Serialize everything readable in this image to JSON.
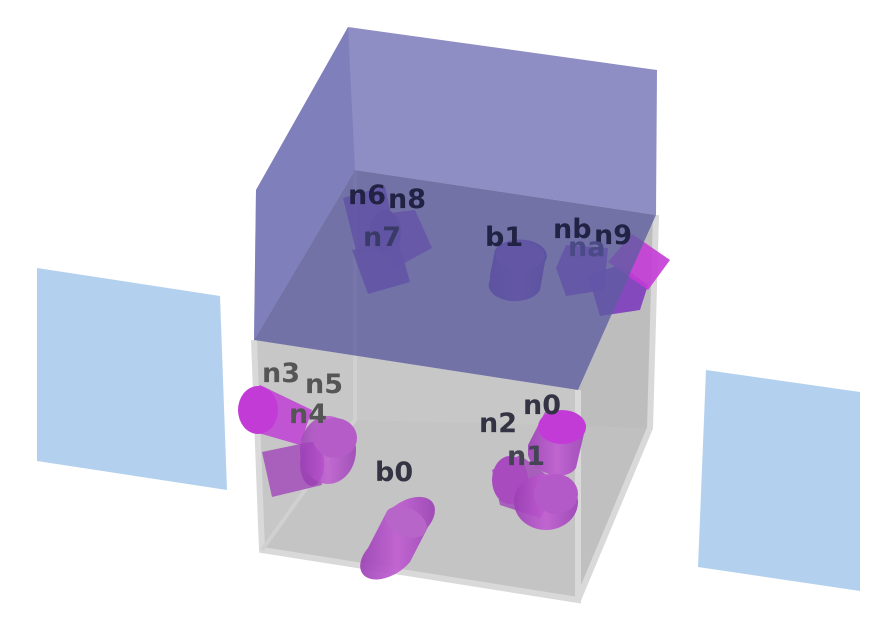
{
  "labels": {
    "b0": "b0",
    "b1": "b1",
    "n0": "n0",
    "n1": "n1",
    "n2": "n2",
    "n3": "n3",
    "n4": "n4",
    "n5": "n5",
    "n6": "n6",
    "n7": "n7",
    "n8": "n8",
    "n9": "n9",
    "na": "na",
    "nb": "nb"
  },
  "colors": {
    "background": "#ffffff",
    "side_panel": "#b3d1ee",
    "lower_box": "#c7c7c7",
    "lower_box_edge": "#d9d9d9",
    "upper_box": "#7a7aba",
    "upper_box_dark": "#6a6aa6",
    "cylinder": "#b24fc4",
    "cylinder_bright": "#c33bd6",
    "cylinder_dark": "#6f3aa8",
    "label_dark": "#333344",
    "label_top": "#222244"
  }
}
